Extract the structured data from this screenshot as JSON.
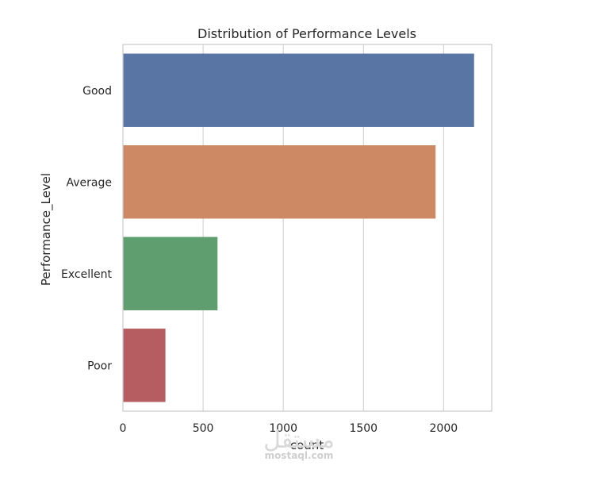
{
  "chart_data": {
    "type": "bar",
    "orientation": "horizontal",
    "title": "Distribution of Performance Levels",
    "xlabel": "count",
    "ylabel": "Performance_Level",
    "categories": [
      "Good",
      "Average",
      "Excellent",
      "Poor"
    ],
    "values": [
      2190,
      1950,
      590,
      265
    ],
    "colors": [
      "#5875a4",
      "#cc8963",
      "#5f9e6e",
      "#b55d60"
    ],
    "xlim": [
      0,
      2300
    ],
    "xticks": [
      0,
      500,
      1000,
      1500,
      2000
    ],
    "grid": true,
    "legend": "none"
  },
  "watermark": {
    "text": "mostaql.com"
  }
}
